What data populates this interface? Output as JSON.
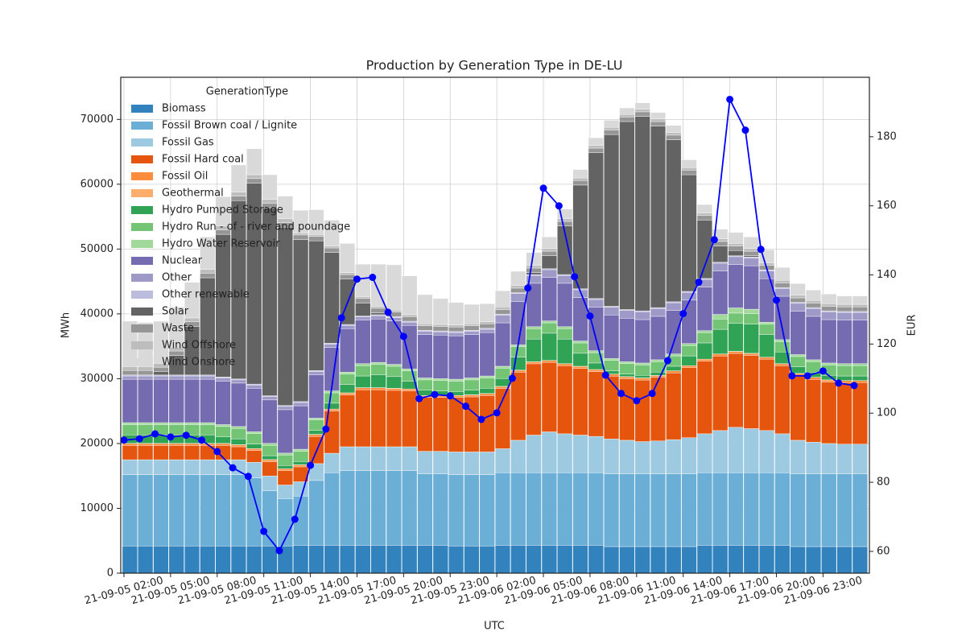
{
  "chart_data": {
    "type": "bar",
    "stacked": true,
    "title": "Production by Generation Type in DE-LU",
    "x_label": "UTC",
    "y_label": "MWh",
    "y2_label": "EUR",
    "legend_title": "GenerationType",
    "legend_loc": "upper left",
    "grid": true,
    "categories": [
      "21-09-05 02:00",
      null,
      null,
      "21-09-05 05:00",
      null,
      null,
      "21-09-05 08:00",
      null,
      null,
      "21-09-05 11:00",
      null,
      null,
      "21-09-05 14:00",
      null,
      null,
      "21-09-05 17:00",
      null,
      null,
      "21-09-05 20:00",
      null,
      null,
      "21-09-05 23:00",
      null,
      null,
      "21-09-06 02:00",
      null,
      null,
      "21-09-06 05:00",
      null,
      null,
      "21-09-06 08:00",
      null,
      null,
      "21-09-06 11:00",
      null,
      null,
      "21-09-06 14:00",
      null,
      null,
      "21-09-06 17:00",
      null,
      null,
      "21-09-06 20:00",
      null,
      null,
      "21-09-06 23:00",
      null,
      null
    ],
    "ylim": [
      0,
      76500
    ],
    "yticks": [
      0,
      10000,
      20000,
      30000,
      40000,
      50000,
      60000,
      70000
    ],
    "y2lim": [
      53.7,
      197.2
    ],
    "y2ticks": [
      60,
      80,
      100,
      120,
      140,
      160,
      180
    ],
    "series": [
      {
        "name": "Biomass",
        "color": "#3182bd",
        "values": [
          4200,
          4200,
          4200,
          4200,
          4200,
          4200,
          4200,
          4200,
          4200,
          4200,
          4200,
          4300,
          4300,
          4300,
          4300,
          4300,
          4300,
          4300,
          4300,
          4300,
          4300,
          4200,
          4200,
          4200,
          4300,
          4300,
          4300,
          4300,
          4300,
          4300,
          4300,
          4100,
          4100,
          4100,
          4100,
          4100,
          4100,
          4300,
          4300,
          4300,
          4300,
          4300,
          4300,
          4100,
          4100,
          4100,
          4100,
          4100
        ]
      },
      {
        "name": "Fossil Brown coal / Lignite",
        "color": "#6baed6",
        "values": [
          11000,
          11000,
          11000,
          11000,
          11000,
          11000,
          11000,
          11000,
          10500,
          8500,
          7300,
          7600,
          10000,
          11200,
          11500,
          11500,
          11500,
          11500,
          11500,
          11000,
          11000,
          11000,
          11000,
          11000,
          11200,
          11200,
          11200,
          11200,
          11200,
          11200,
          11200,
          11200,
          11200,
          11200,
          11200,
          11200,
          11200,
          11200,
          11200,
          11200,
          11200,
          11200,
          11200,
          11200,
          11200,
          11200,
          11200,
          11200
        ]
      },
      {
        "name": "Fossil Gas",
        "color": "#9ecae1",
        "values": [
          2300,
          2300,
          2300,
          2300,
          2300,
          2300,
          2300,
          2300,
          2400,
          2300,
          2100,
          2200,
          2600,
          3000,
          3700,
          3700,
          3700,
          3700,
          3700,
          3500,
          3500,
          3500,
          3500,
          3500,
          3700,
          5000,
          5800,
          6300,
          6000,
          5800,
          5600,
          5400,
          5200,
          5000,
          5100,
          5300,
          5600,
          6000,
          6500,
          7000,
          6800,
          6500,
          6000,
          5200,
          4900,
          4700,
          4600,
          4600
        ]
      },
      {
        "name": "Fossil Hard coal",
        "color": "#e6550d",
        "values": [
          2200,
          2200,
          2200,
          2200,
          2200,
          2200,
          2200,
          2000,
          1800,
          2200,
          2200,
          2300,
          4200,
          6500,
          8000,
          8800,
          8800,
          8700,
          8600,
          8300,
          8300,
          8400,
          8500,
          8700,
          9300,
          10500,
          11000,
          10700,
          10500,
          10300,
          10000,
          9700,
          9500,
          9500,
          9800,
          10300,
          10800,
          11200,
          11500,
          11400,
          11300,
          11000,
          10500,
          10000,
          9700,
          9500,
          9500,
          9500
        ]
      },
      {
        "name": "Fossil Oil",
        "color": "#fd8d3c",
        "values": [
          300,
          300,
          300,
          300,
          300,
          300,
          300,
          300,
          300,
          300,
          300,
          300,
          300,
          300,
          300,
          300,
          300,
          300,
          300,
          300,
          300,
          300,
          300,
          300,
          300,
          300,
          300,
          300,
          300,
          300,
          300,
          300,
          300,
          300,
          300,
          300,
          300,
          300,
          300,
          300,
          300,
          300,
          300,
          300,
          300,
          300,
          300,
          300
        ]
      },
      {
        "name": "Geothermal",
        "color": "#fdae6b",
        "values": [
          20,
          20,
          20,
          20,
          20,
          20,
          20,
          20,
          20,
          20,
          20,
          20,
          20,
          20,
          20,
          20,
          20,
          20,
          20,
          20,
          20,
          20,
          20,
          20,
          20,
          20,
          20,
          20,
          20,
          20,
          20,
          20,
          20,
          20,
          20,
          20,
          20,
          20,
          20,
          20,
          20,
          20,
          20,
          20,
          20,
          20,
          20,
          20
        ]
      },
      {
        "name": "Hydro Pumped Storage",
        "color": "#31a354",
        "values": [
          1300,
          1300,
          1300,
          1300,
          1300,
          1300,
          1000,
          900,
          700,
          600,
          500,
          500,
          600,
          900,
          1300,
          1800,
          2000,
          1800,
          1200,
          800,
          700,
          600,
          700,
          800,
          1200,
          2000,
          3500,
          4200,
          3800,
          2000,
          1000,
          500,
          400,
          400,
          500,
          700,
          1500,
          2500,
          3800,
          4300,
          4500,
          3500,
          1800,
          1000,
          800,
          700,
          700,
          700
        ]
      },
      {
        "name": "Hydro Run - of - river and poundage",
        "color": "#74c476",
        "values": [
          1600,
          1600,
          1600,
          1600,
          1600,
          1600,
          1600,
          1600,
          1600,
          1600,
          1600,
          1600,
          1600,
          1600,
          1600,
          1600,
          1600,
          1600,
          1600,
          1600,
          1600,
          1600,
          1600,
          1600,
          1600,
          1600,
          1600,
          1600,
          1600,
          1600,
          1600,
          1600,
          1600,
          1600,
          1600,
          1600,
          1600,
          1600,
          1600,
          1600,
          1600,
          1600,
          1600,
          1600,
          1600,
          1600,
          1600,
          1600
        ]
      },
      {
        "name": "Hydro Water Reservoir",
        "color": "#a1d99b",
        "values": [
          300,
          300,
          300,
          300,
          300,
          300,
          300,
          300,
          300,
          300,
          300,
          300,
          300,
          300,
          300,
          300,
          300,
          300,
          300,
          300,
          300,
          300,
          300,
          300,
          300,
          300,
          300,
          300,
          300,
          300,
          300,
          300,
          300,
          300,
          300,
          300,
          300,
          300,
          700,
          800,
          700,
          300,
          300,
          300,
          300,
          300,
          300,
          300
        ]
      },
      {
        "name": "Nuclear",
        "color": "#756bb1",
        "values": [
          6700,
          6700,
          6700,
          6700,
          6700,
          6700,
          6700,
          6700,
          6700,
          6700,
          6700,
          6700,
          6700,
          6700,
          6700,
          6700,
          6700,
          6700,
          6700,
          6700,
          6700,
          6700,
          6700,
          6700,
          6700,
          6700,
          6700,
          6700,
          6700,
          6700,
          6700,
          6700,
          6700,
          6700,
          6700,
          6700,
          6700,
          6700,
          6700,
          6700,
          6700,
          6700,
          6700,
          6700,
          6700,
          6700,
          6700,
          6700
        ]
      },
      {
        "name": "Other",
        "color": "#9e9ac8",
        "values": [
          500,
          500,
          500,
          500,
          500,
          500,
          500,
          500,
          500,
          500,
          500,
          500,
          500,
          500,
          500,
          500,
          500,
          500,
          500,
          500,
          500,
          500,
          500,
          500,
          1200,
          1200,
          1200,
          1200,
          1200,
          1200,
          1200,
          1200,
          1200,
          1200,
          1200,
          1200,
          1200,
          1200,
          1200,
          1200,
          1200,
          1200,
          1200,
          1200,
          1200,
          1200,
          1200,
          1200
        ]
      },
      {
        "name": "Other renewable",
        "color": "#bcbddc",
        "values": [
          150,
          150,
          150,
          150,
          150,
          150,
          150,
          150,
          150,
          150,
          150,
          150,
          150,
          150,
          150,
          150,
          150,
          150,
          150,
          150,
          150,
          150,
          150,
          150,
          150,
          150,
          150,
          150,
          150,
          150,
          150,
          150,
          150,
          150,
          150,
          150,
          150,
          150,
          150,
          150,
          150,
          150,
          150,
          150,
          150,
          150,
          150,
          150
        ]
      },
      {
        "name": "Solar",
        "color": "#636363",
        "values": [
          0,
          0,
          500,
          3000,
          7500,
          15000,
          22000,
          27500,
          31000,
          29000,
          27500,
          25000,
          20000,
          14000,
          7000,
          2000,
          300,
          0,
          0,
          0,
          0,
          0,
          0,
          0,
          0,
          0,
          300,
          2000,
          7500,
          16000,
          22500,
          26500,
          29000,
          30000,
          28000,
          25000,
          18000,
          9000,
          2500,
          800,
          200,
          0,
          0,
          0,
          0,
          0,
          0,
          0
        ]
      },
      {
        "name": "Waste",
        "color": "#969696",
        "values": [
          700,
          700,
          700,
          700,
          700,
          700,
          700,
          700,
          700,
          700,
          700,
          700,
          700,
          700,
          700,
          700,
          700,
          700,
          700,
          700,
          700,
          700,
          700,
          700,
          700,
          700,
          700,
          700,
          700,
          700,
          700,
          700,
          700,
          700,
          700,
          700,
          700,
          700,
          700,
          700,
          700,
          700,
          700,
          700,
          700,
          700,
          700,
          700
        ]
      },
      {
        "name": "Wind Offshore",
        "color": "#bdbdbd",
        "values": [
          600,
          600,
          600,
          600,
          600,
          600,
          600,
          600,
          600,
          600,
          600,
          300,
          300,
          300,
          300,
          300,
          300,
          300,
          300,
          300,
          300,
          300,
          300,
          300,
          400,
          400,
          400,
          400,
          400,
          400,
          400,
          400,
          400,
          400,
          400,
          400,
          400,
          400,
          400,
          400,
          400,
          400,
          400,
          400,
          400,
          400,
          400,
          400
        ]
      },
      {
        "name": "Wind Onshore",
        "color": "#d9d9d9",
        "values": [
          7000,
          6800,
          6500,
          6200,
          5500,
          5000,
          4500,
          4200,
          4000,
          3800,
          3500,
          3500,
          3800,
          4000,
          4500,
          5000,
          6500,
          7000,
          6000,
          4500,
          4000,
          3500,
          3000,
          2800,
          2500,
          2200,
          2000,
          1800,
          1500,
          1300,
          1200,
          1100,
          1000,
          1000,
          1000,
          1100,
          1200,
          1300,
          1500,
          1700,
          1800,
          2000,
          2000,
          1800,
          1600,
          1500,
          1300,
          1300
        ]
      },
      {
        "type": "line",
        "axis": "y2",
        "color": "#0000ff",
        "values": [
          92.2,
          92.6,
          94,
          93.1,
          93.6,
          92.2,
          88.9,
          84.2,
          81.7,
          65.8,
          60.2,
          69.3,
          84.9,
          95.4,
          127.6,
          138.8,
          139.3,
          129.2,
          122.2,
          104.2,
          105.4,
          105,
          102,
          98.2,
          100.1,
          110.1,
          136.2,
          165.1,
          160,
          139.5,
          128.1,
          111,
          105.7,
          103.6,
          105.7,
          115.2,
          128.8,
          137.9,
          150.2,
          190.8,
          181.9,
          147.4,
          132.7,
          110.8,
          110.8,
          112.2,
          108.7,
          108
        ]
      }
    ]
  }
}
